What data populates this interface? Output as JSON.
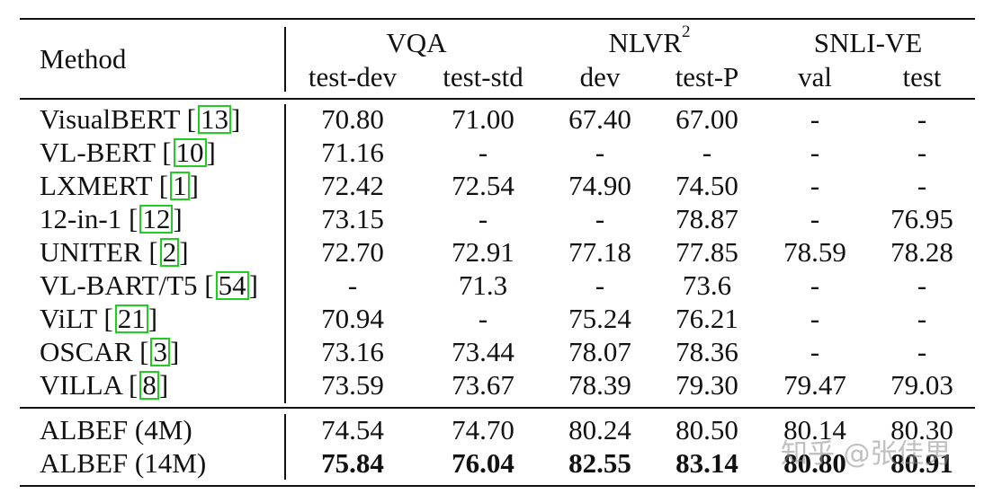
{
  "header": {
    "method": "Method",
    "groups": [
      {
        "label": "VQA",
        "sup": ""
      },
      {
        "label": "NLVR",
        "sup": "2"
      },
      {
        "label": "SNLI-VE",
        "sup": ""
      }
    ],
    "subheaders": [
      "test-dev",
      "test-std",
      "dev",
      "test-P",
      "val",
      "test"
    ]
  },
  "rows": [
    {
      "method": "VisualBERT",
      "ref": "13",
      "values": [
        "70.80",
        "71.00",
        "67.40",
        "67.00",
        "-",
        "-"
      ]
    },
    {
      "method": "VL-BERT",
      "ref": "10",
      "values": [
        "71.16",
        "-",
        "-",
        "-",
        "-",
        "-"
      ]
    },
    {
      "method": "LXMERT",
      "ref": "1",
      "values": [
        "72.42",
        "72.54",
        "74.90",
        "74.50",
        "-",
        "-"
      ]
    },
    {
      "method": "12-in-1",
      "ref": "12",
      "values": [
        "73.15",
        "-",
        "-",
        "78.87",
        "-",
        "76.95"
      ]
    },
    {
      "method": "UNITER",
      "ref": "2",
      "values": [
        "72.70",
        "72.91",
        "77.18",
        "77.85",
        "78.59",
        "78.28"
      ]
    },
    {
      "method": "VL-BART/T5",
      "ref": "54",
      "values": [
        "-",
        "71.3",
        "-",
        "73.6",
        "-",
        "-"
      ]
    },
    {
      "method": "ViLT",
      "ref": "21",
      "values": [
        "70.94",
        "-",
        "75.24",
        "76.21",
        "-",
        "-"
      ]
    },
    {
      "method": "OSCAR",
      "ref": "3",
      "values": [
        "73.16",
        "73.44",
        "78.07",
        "78.36",
        "-",
        "-"
      ]
    },
    {
      "method": "VILLA",
      "ref": "8",
      "values": [
        "73.59",
        "73.67",
        "78.39",
        "79.30",
        "79.47",
        "79.03"
      ]
    }
  ],
  "albef_rows": [
    {
      "method": "ALBEF (4M)",
      "values": [
        "74.54",
        "74.70",
        "80.24",
        "80.50",
        "80.14",
        "80.30"
      ],
      "bold": false
    },
    {
      "method": "ALBEF (14M)",
      "values": [
        "75.84",
        "76.04",
        "82.55",
        "83.14",
        "80.80",
        "80.91"
      ],
      "bold": true
    }
  ],
  "watermark": "知乎 @张佳男"
}
